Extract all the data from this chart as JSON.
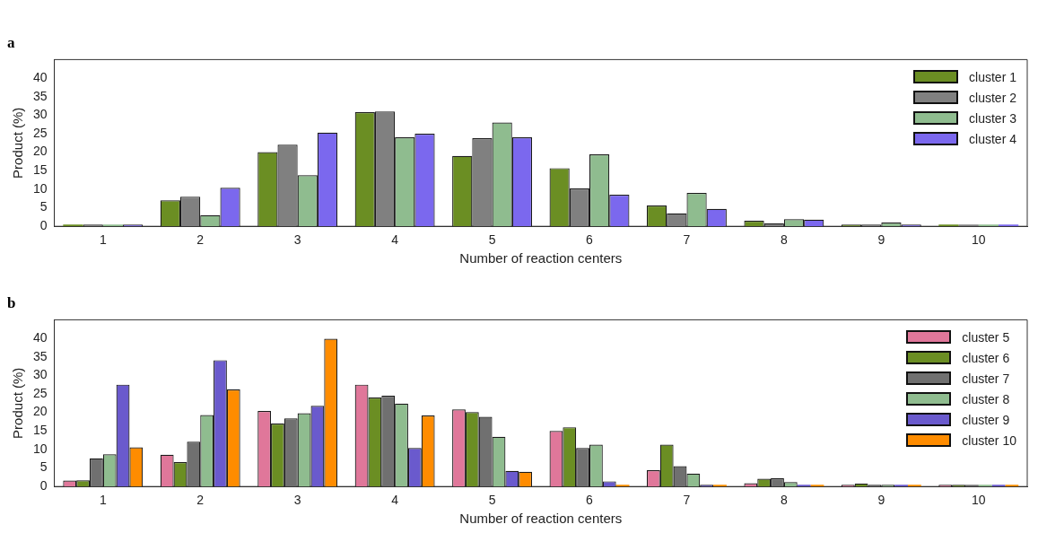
{
  "chart_data": [
    {
      "type": "bar",
      "title": "a",
      "xlabel": "Number of reaction centers",
      "ylabel": "Product (%)",
      "categories": [
        "1",
        "2",
        "3",
        "4",
        "5",
        "6",
        "7",
        "8",
        "9",
        "10"
      ],
      "series": [
        {
          "name": "cluster 1",
          "color": "#6b8e23",
          "values": [
            0,
            7,
            20,
            30.8,
            19,
            15.7,
            5.6,
            1.5,
            0.3,
            0
          ]
        },
        {
          "name": "cluster 2",
          "color": "#808080",
          "values": [
            0.3,
            8,
            22,
            31,
            23.8,
            10.2,
            3.5,
            0.8,
            0.2,
            0
          ]
        },
        {
          "name": "cluster 3",
          "color": "#8fbc8f",
          "values": [
            0,
            3,
            13.8,
            24,
            28,
            19.4,
            9,
            1.9,
            1,
            0
          ]
        },
        {
          "name": "cluster 4",
          "color": "#7b68ee",
          "values": [
            0.2,
            10.4,
            25.3,
            25,
            24,
            8.5,
            4.7,
            1.8,
            0.3,
            0
          ]
        }
      ],
      "ylim": [
        0,
        45
      ],
      "yticks": [
        0,
        5,
        10,
        15,
        20,
        25,
        30,
        35,
        40
      ],
      "grid": false,
      "legend": "top right"
    },
    {
      "type": "bar",
      "title": "b",
      "xlabel": "Number of reaction centers",
      "ylabel": "Product (%)",
      "categories": [
        "1",
        "2",
        "3",
        "4",
        "5",
        "6",
        "7",
        "8",
        "9",
        "10"
      ],
      "series": [
        {
          "name": "cluster 5",
          "color": "#e0779a",
          "values": [
            1.6,
            8.6,
            20.4,
            27.5,
            20.8,
            15,
            4.4,
            0.9,
            0.2,
            0.1
          ]
        },
        {
          "name": "cluster 6",
          "color": "#6b8e23",
          "values": [
            1.7,
            6.6,
            17,
            24,
            20.1,
            16,
            11.3,
            2.1,
            0.8,
            0.1
          ]
        },
        {
          "name": "cluster 7",
          "color": "#707070",
          "values": [
            7.6,
            12.1,
            18.4,
            24.5,
            18.8,
            10.4,
            5.5,
            2.2,
            0.2,
            0
          ]
        },
        {
          "name": "cluster 8",
          "color": "#8fbc8f",
          "values": [
            8.7,
            19.3,
            19.8,
            22.4,
            13.4,
            11.3,
            3.5,
            1.2,
            0.1,
            0
          ]
        },
        {
          "name": "cluster 9",
          "color": "#6a5acd",
          "values": [
            27.5,
            34.1,
            21.8,
            10.4,
            4.2,
            1.4,
            0.5,
            0,
            0,
            0
          ]
        },
        {
          "name": "cluster 10",
          "color": "#ff8c00",
          "values": [
            10.6,
            26.2,
            39.9,
            19.2,
            4,
            0,
            0,
            0,
            0,
            0
          ]
        }
      ],
      "ylim": [
        0,
        45
      ],
      "yticks": [
        0,
        5,
        10,
        15,
        20,
        25,
        30,
        35,
        40
      ],
      "grid": false,
      "legend": "top right"
    }
  ]
}
